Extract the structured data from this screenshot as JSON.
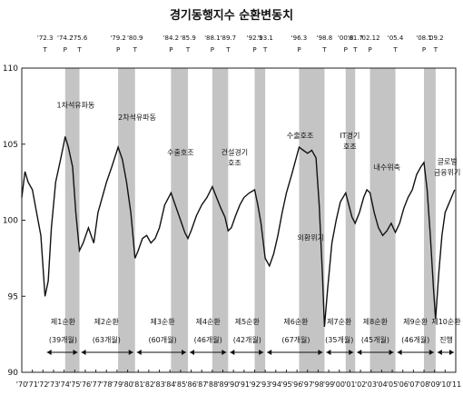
{
  "chart_data": {
    "type": "line",
    "title": "경기동행지수 순환변동치",
    "ylim": [
      90,
      110
    ],
    "yticks": [
      90,
      95,
      100,
      105,
      110
    ],
    "xlim": [
      1970,
      2011
    ],
    "x_tick_labels": [
      "'70",
      "'71",
      "'72",
      "'73",
      "'74",
      "'75",
      "'76",
      "'77",
      "'78",
      "'79",
      "'80",
      "'81",
      "'82",
      "'83",
      "'84",
      "'85",
      "'86",
      "'87",
      "'88",
      "'89",
      "'90",
      "'91",
      "'92",
      "'93",
      "'94",
      "'95",
      "'96",
      "'97",
      "'98",
      "'99",
      "'00",
      "'01",
      "'02",
      "'03",
      "'04",
      "'05",
      "'06",
      "'07",
      "'08",
      "'09",
      "'10",
      "'11"
    ],
    "grid": false,
    "turning_points": [
      {
        "label": "'72.3",
        "x": 1972.2,
        "type": "T"
      },
      {
        "label": "'74.2",
        "x": 1974.1,
        "type": "P"
      },
      {
        "label": "'75.6",
        "x": 1975.45,
        "type": "T"
      },
      {
        "label": "'79.2",
        "x": 1979.1,
        "type": "P"
      },
      {
        "label": "'80.9",
        "x": 1980.7,
        "type": "T"
      },
      {
        "label": "'84.2",
        "x": 1984.1,
        "type": "P"
      },
      {
        "label": "'85.9",
        "x": 1985.7,
        "type": "T"
      },
      {
        "label": "'88.1",
        "x": 1988.0,
        "type": "P"
      },
      {
        "label": "'89.7",
        "x": 1989.5,
        "type": "T"
      },
      {
        "label": "'92.1",
        "x": 1992.0,
        "type": "P"
      },
      {
        "label": "'93.1",
        "x": 1993.0,
        "type": "T"
      },
      {
        "label": "'96.3",
        "x": 1996.2,
        "type": "P"
      },
      {
        "label": "'98.8",
        "x": 1998.6,
        "type": "T"
      },
      {
        "label": "'00.8",
        "x": 2000.6,
        "type": "P"
      },
      {
        "label": "'01.7",
        "x": 2001.5,
        "type": "T"
      },
      {
        "label": "'02.12",
        "x": 2002.9,
        "type": "P"
      },
      {
        "label": "'05.4",
        "x": 2005.3,
        "type": "T"
      },
      {
        "label": "'08.1",
        "x": 2008.0,
        "type": "P"
      },
      {
        "label": "'09.2",
        "x": 2009.1,
        "type": "T"
      }
    ],
    "contraction_periods": [
      [
        1974.1,
        1975.45
      ],
      [
        1979.1,
        1980.7
      ],
      [
        1984.1,
        1985.7
      ],
      [
        1988.0,
        1989.5
      ],
      [
        1992.0,
        1993.0
      ],
      [
        1996.2,
        1998.6
      ],
      [
        2000.6,
        2001.5
      ],
      [
        2002.9,
        2005.3
      ],
      [
        2008.0,
        2009.1
      ]
    ],
    "series": [
      {
        "x": [
          1970.0,
          1970.3,
          1970.6,
          1971.0,
          1971.4,
          1971.8,
          1972.2,
          1972.5,
          1972.8,
          1973.2,
          1973.6,
          1973.9,
          1974.1,
          1974.4,
          1974.8,
          1975.1,
          1975.45,
          1975.8,
          1976.3,
          1976.8,
          1977.2,
          1977.6,
          1978.0,
          1978.5,
          1979.1,
          1979.5,
          1979.9,
          1980.3,
          1980.7,
          1981.0,
          1981.4,
          1981.8,
          1982.2,
          1982.6,
          1983.0,
          1983.5,
          1984.1,
          1984.5,
          1985.0,
          1985.4,
          1985.7,
          1986.0,
          1986.5,
          1987.0,
          1987.5,
          1988.0,
          1988.4,
          1988.8,
          1989.2,
          1989.5,
          1989.8,
          1990.2,
          1990.6,
          1991.0,
          1991.5,
          1992.0,
          1992.3,
          1992.6,
          1993.0,
          1993.4,
          1993.8,
          1994.2,
          1994.6,
          1995.0,
          1995.5,
          1996.2,
          1996.6,
          1997.0,
          1997.4,
          1997.8,
          1998.1,
          1998.4,
          1998.6,
          1998.9,
          1999.3,
          1999.7,
          2000.1,
          2000.6,
          2000.9,
          2001.2,
          2001.5,
          2001.9,
          2002.3,
          2002.6,
          2002.9,
          2003.3,
          2003.7,
          2004.1,
          2004.5,
          2004.9,
          2005.3,
          2005.7,
          2006.1,
          2006.5,
          2006.9,
          2007.3,
          2007.7,
          2008.0,
          2008.3,
          2008.6,
          2008.9,
          2009.1,
          2009.4,
          2009.7,
          2010.0,
          2010.3,
          2010.6,
          2010.9
        ],
        "values": [
          101.5,
          103.2,
          102.5,
          102.0,
          100.5,
          99.0,
          95.0,
          96.0,
          99.5,
          102.5,
          103.8,
          104.8,
          105.5,
          104.8,
          103.5,
          100.5,
          98.0,
          98.5,
          99.5,
          98.5,
          100.5,
          101.5,
          102.5,
          103.5,
          104.8,
          104.0,
          102.5,
          100.5,
          97.5,
          98.0,
          98.8,
          99.0,
          98.5,
          98.8,
          99.5,
          101.0,
          101.8,
          101.0,
          100.0,
          99.2,
          98.8,
          99.3,
          100.3,
          101.0,
          101.5,
          102.2,
          101.5,
          100.8,
          100.2,
          99.3,
          99.5,
          100.3,
          101.0,
          101.5,
          101.8,
          102.0,
          101.0,
          99.8,
          97.5,
          97.0,
          97.8,
          99.0,
          100.5,
          101.8,
          103.0,
          104.8,
          104.6,
          104.4,
          104.6,
          104.1,
          101.0,
          96.5,
          93.0,
          95.5,
          98.5,
          100.0,
          101.2,
          101.8,
          101.0,
          100.2,
          99.8,
          100.5,
          101.5,
          102.0,
          101.8,
          100.5,
          99.5,
          99.0,
          99.3,
          99.8,
          99.2,
          99.8,
          100.8,
          101.5,
          102.0,
          103.0,
          103.5,
          103.8,
          102.0,
          99.0,
          95.5,
          93.5,
          96.5,
          99.0,
          100.5,
          101.0,
          101.5,
          102.0
        ]
      }
    ],
    "annotations": [
      {
        "text": "1차석유파동",
        "x": 1975.1,
        "y": 107.4
      },
      {
        "text": "2차석유파동",
        "x": 1980.9,
        "y": 106.6
      },
      {
        "text": "수출호조",
        "x": 1985.0,
        "y": 104.3
      },
      {
        "text": "건설경기",
        "x": 1990.1,
        "y": 104.3
      },
      {
        "text": "호조",
        "x": 1990.1,
        "y": 103.6
      },
      {
        "text": "수출호조",
        "x": 1996.3,
        "y": 105.4
      },
      {
        "text": "IT경기",
        "x": 2001.0,
        "y": 105.4
      },
      {
        "text": "호조",
        "x": 2001.0,
        "y": 104.7
      },
      {
        "text": "외환위기",
        "x": 1997.3,
        "y": 98.7
      },
      {
        "text": "내수위축",
        "x": 2004.5,
        "y": 103.3
      },
      {
        "text": "글로벌",
        "x": 2010.2,
        "y": 103.7
      },
      {
        "text": "금융위기",
        "x": 2010.2,
        "y": 103.0
      }
    ],
    "cycles": [
      {
        "name": "제1순환",
        "duration": "(39개월)",
        "x": 1973.9
      },
      {
        "name": "제2순환",
        "duration": "(63개월)",
        "x": 1978.0
      },
      {
        "name": "제3순환",
        "duration": "(60개월)",
        "x": 1983.3
      },
      {
        "name": "제4순환",
        "duration": "(46개월)",
        "x": 1987.6
      },
      {
        "name": "제5순환",
        "duration": "(42개월)",
        "x": 1991.3
      },
      {
        "name": "제6순환",
        "duration": "(67개월)",
        "x": 1995.9
      },
      {
        "name": "제7순환",
        "duration": "(35개월)",
        "x": 2000.0
      },
      {
        "name": "제8순환",
        "duration": "(45개월)",
        "x": 2003.4
      },
      {
        "name": "제9순환",
        "duration": "(46개월)",
        "x": 2007.2
      },
      {
        "name": "제10순환",
        "duration": "진행",
        "x": 2010.1
      }
    ]
  }
}
